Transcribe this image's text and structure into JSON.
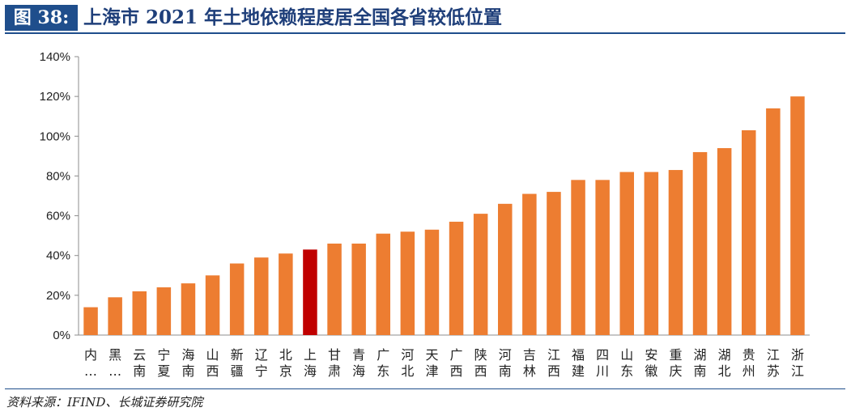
{
  "header": {
    "badge": "图 38:",
    "title": "上海市 2021 年土地依赖程度居全国各省较低位置"
  },
  "footer": {
    "source": "资料来源：IFIND、长城证券研究院"
  },
  "colors": {
    "bar": "#ED7D31",
    "highlight": "#C00000",
    "axis": "#8C8C8C",
    "brand": "#1F4E8C"
  },
  "chart_data": {
    "type": "bar",
    "title": "",
    "xlabel": "",
    "ylabel": "",
    "ylim": [
      0,
      140
    ],
    "yticks": [
      "0%",
      "20%",
      "40%",
      "60%",
      "80%",
      "100%",
      "120%",
      "140%"
    ],
    "grid": false,
    "categories": [
      "内…",
      "黑…",
      "云南",
      "宁夏",
      "海南",
      "山西",
      "新疆",
      "辽宁",
      "北京",
      "上海",
      "甘肃",
      "青海",
      "广东",
      "河北",
      "天津",
      "广西",
      "陕西",
      "河南",
      "吉林",
      "江西",
      "福建",
      "四川",
      "山东",
      "安徽",
      "重庆",
      "湖南",
      "湖北",
      "贵州",
      "江苏",
      "浙江"
    ],
    "values": [
      14,
      19,
      22,
      24,
      26,
      30,
      36,
      39,
      41,
      43,
      46,
      46,
      51,
      52,
      53,
      57,
      61,
      66,
      71,
      72,
      78,
      78,
      82,
      82,
      83,
      92,
      94,
      103,
      114,
      120
    ],
    "highlight": "上海"
  }
}
